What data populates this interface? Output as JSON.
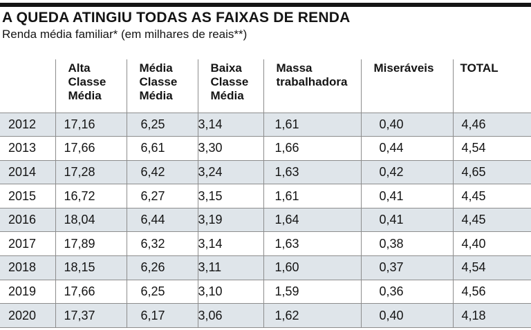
{
  "title": "A QUEDA ATINGIU TODAS AS FAIXAS DE RENDA",
  "subtitle": "Renda média familiar* (em milhares de reais**)",
  "chart_data": {
    "type": "table",
    "columns": [
      "Alta Classe Média",
      "Média Classe Média",
      "Baixa Classe Média",
      "Massa trabalhadora",
      "Miseráveis",
      "TOTAL"
    ],
    "column_lines": [
      [
        "Alta",
        "Classe",
        "Média"
      ],
      [
        "Média",
        "Classe",
        "Média"
      ],
      [
        "Baixa",
        "Classe",
        "Média"
      ],
      [
        "Massa",
        "trabalhadora"
      ],
      [
        "Miseráveis"
      ],
      [
        "TOTAL"
      ]
    ],
    "rows": [
      {
        "year": "2012",
        "values": [
          "17,16",
          "6,25",
          "3,14",
          "1,61",
          "0,40",
          "4,46"
        ]
      },
      {
        "year": "2013",
        "values": [
          "17,66",
          "6,61",
          "3,30",
          "1,66",
          "0,44",
          "4,54"
        ]
      },
      {
        "year": "2014",
        "values": [
          "17,28",
          "6,42",
          "3,24",
          "1,63",
          "0,42",
          "4,65"
        ]
      },
      {
        "year": "2015",
        "values": [
          "16,72",
          "6,27",
          "3,15",
          "1,61",
          "0,41",
          "4,45"
        ]
      },
      {
        "year": "2016",
        "values": [
          "18,04",
          "6,44",
          "3,19",
          "1,64",
          "0,41",
          "4,45"
        ]
      },
      {
        "year": "2017",
        "values": [
          "17,89",
          "6,32",
          "3,14",
          "1,63",
          "0,38",
          "4,40"
        ]
      },
      {
        "year": "2018",
        "values": [
          "18,15",
          "6,26",
          "3,11",
          "1,60",
          "0,37",
          "4,54"
        ]
      },
      {
        "year": "2019",
        "values": [
          "17,66",
          "6,25",
          "3,10",
          "1,59",
          "0,36",
          "4,56"
        ]
      },
      {
        "year": "2020",
        "values": [
          "17,37",
          "6,17",
          "3,06",
          "1,62",
          "0,40",
          "4,18"
        ]
      }
    ]
  },
  "colors": {
    "text": "#141414",
    "shaded_row": "#dfe5ea",
    "rule": "#141414",
    "grid": "#8c8c8c"
  }
}
